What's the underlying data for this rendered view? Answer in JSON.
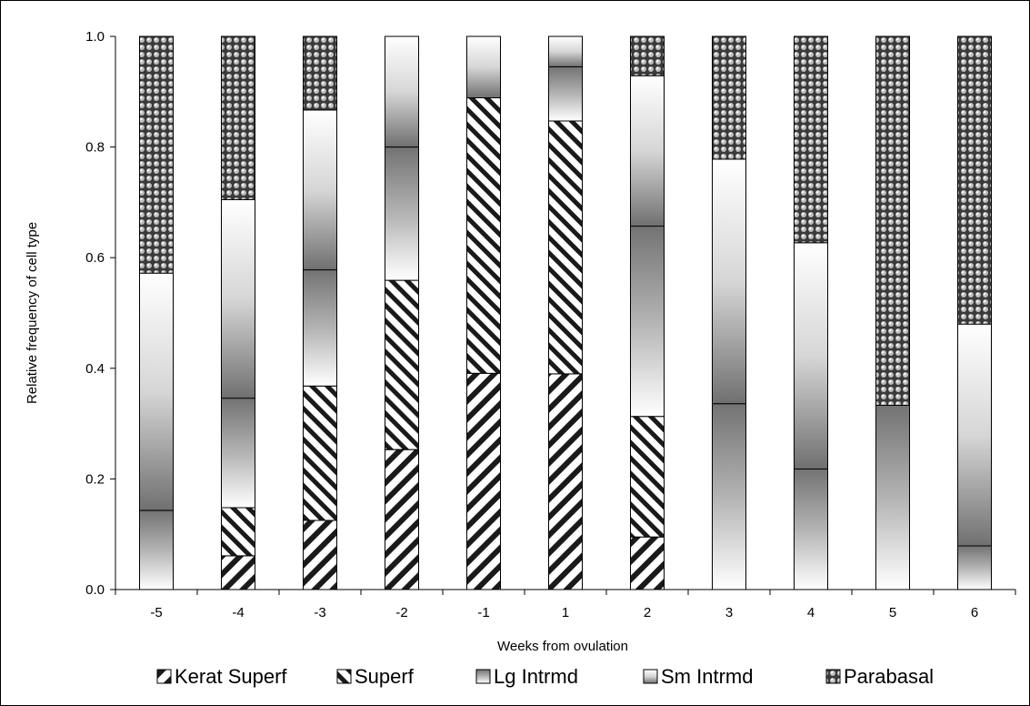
{
  "chart_data": {
    "type": "bar",
    "stacked": true,
    "title": "",
    "xlabel": "Weeks from ovulation",
    "ylabel": "Relative frequency of cell type",
    "ylim": [
      0,
      1.0
    ],
    "yticks": [
      "0.0",
      "0.2",
      "0.4",
      "0.6",
      "0.8",
      "1.0"
    ],
    "grid": false,
    "legend_position": "bottom",
    "categories": [
      "-5",
      "-4",
      "-3",
      "-2",
      "-1",
      "1",
      "2",
      "3",
      "4",
      "5",
      "6"
    ],
    "series": [
      {
        "name": "Kerat Superf",
        "pattern": "back-diagonal-stripes",
        "values": [
          0,
          0.061,
          0.125,
          0.253,
          0.391,
          0.39,
          0.095,
          0,
          0,
          0,
          0
        ]
      },
      {
        "name": "Superf",
        "pattern": "forward-diagonal-stripes",
        "values": [
          0,
          0.087,
          0.243,
          0.306,
          0.498,
          0.457,
          0.218,
          0,
          0,
          0,
          0
        ]
      },
      {
        "name": "Lg Intrmd",
        "pattern": "light-gradient",
        "values": [
          0.143,
          0.198,
          0.21,
          0.241,
          0,
          0.098,
          0.344,
          0.336,
          0.218,
          0.333,
          0.079
        ]
      },
      {
        "name": "Sm Intrmd",
        "pattern": "dark-gradient",
        "values": [
          0.429,
          0.359,
          0.289,
          0.2,
          0.111,
          0.055,
          0.272,
          0.442,
          0.409,
          0,
          0.401
        ]
      },
      {
        "name": "Parabasal",
        "pattern": "dotted",
        "values": [
          0.428,
          0.295,
          0.133,
          0,
          0,
          0,
          0.071,
          0.222,
          0.373,
          0.667,
          0.52
        ]
      }
    ]
  }
}
